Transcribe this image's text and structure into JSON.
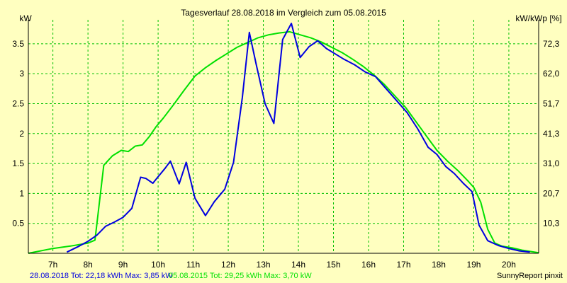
{
  "colors": {
    "background": "#ffffc0",
    "grid": "#00c000",
    "series_2018": "#0000e0",
    "series_2015": "#00e000",
    "axis": "#000000"
  },
  "footer": {
    "series1_label": "28.08.2018 Tot: 22,18 kWh Max: 3,85 kW",
    "series2_label": "05.08.2015 Tot: 29,25 kWh Max: 3,70 kW",
    "credit": "SunnyReport pinxit"
  },
  "chart_data": {
    "type": "line",
    "title": "Tagesverlauf 28.08.2018 im Vergleich zum 05.08.2015",
    "ylabel": "kW",
    "y2label": "kW/kWp [%]",
    "xlim": [
      6.3,
      20.85
    ],
    "ylim": [
      0,
      3.9
    ],
    "x_ticks": [
      "7h",
      "8h",
      "9h",
      "10h",
      "11h",
      "12h",
      "13h",
      "14h",
      "15h",
      "16h",
      "17h",
      "18h",
      "19h",
      "20h"
    ],
    "y_ticks": [
      "0.5",
      "1",
      "1.5",
      "2",
      "2.5",
      "3",
      "3.5"
    ],
    "y2_ticks": [
      "10,3",
      "20,7",
      "31,0",
      "41,3",
      "51,7",
      "62,0",
      "72,3"
    ],
    "grid": true,
    "series": [
      {
        "name": "28.08.2018",
        "color": "#0000e0",
        "x": [
          7.4,
          7.75,
          8.0,
          8.25,
          8.5,
          8.75,
          9.0,
          9.25,
          9.5,
          9.65,
          9.85,
          10.0,
          10.2,
          10.35,
          10.6,
          10.8,
          11.05,
          11.35,
          11.6,
          11.9,
          12.15,
          12.4,
          12.6,
          12.8,
          13.05,
          13.3,
          13.55,
          13.8,
          14.05,
          14.3,
          14.55,
          14.8,
          15.05,
          15.3,
          15.6,
          15.9,
          16.2,
          16.5,
          16.8,
          17.1,
          17.4,
          17.7,
          17.95,
          18.2,
          18.45,
          18.7,
          18.95,
          19.15,
          19.4,
          19.7,
          20.0,
          20.3,
          20.6
        ],
        "y": [
          0.02,
          0.12,
          0.2,
          0.3,
          0.45,
          0.52,
          0.6,
          0.75,
          1.27,
          1.25,
          1.17,
          1.28,
          1.42,
          1.54,
          1.16,
          1.52,
          0.92,
          0.63,
          0.86,
          1.07,
          1.52,
          2.6,
          3.69,
          3.15,
          2.5,
          2.17,
          3.57,
          3.84,
          3.27,
          3.45,
          3.55,
          3.42,
          3.33,
          3.24,
          3.15,
          3.03,
          2.95,
          2.75,
          2.55,
          2.35,
          2.08,
          1.77,
          1.65,
          1.45,
          1.33,
          1.17,
          1.03,
          0.47,
          0.21,
          0.13,
          0.08,
          0.04,
          0.02
        ]
      },
      {
        "name": "05.08.2015",
        "color": "#00e000",
        "x": [
          6.3,
          7.0,
          7.5,
          8.0,
          8.2,
          8.45,
          8.7,
          8.95,
          9.15,
          9.35,
          9.55,
          9.75,
          9.95,
          10.15,
          10.45,
          10.75,
          11.05,
          11.35,
          11.65,
          11.95,
          12.25,
          12.55,
          12.85,
          13.15,
          13.45,
          13.75,
          14.05,
          14.35,
          14.65,
          14.95,
          15.25,
          15.55,
          15.85,
          16.15,
          16.45,
          16.75,
          17.05,
          17.35,
          17.65,
          17.95,
          18.25,
          18.55,
          18.85,
          19.0,
          19.2,
          19.4,
          19.6,
          19.8,
          20.1,
          20.4,
          20.85
        ],
        "y": [
          0.0,
          0.08,
          0.12,
          0.17,
          0.22,
          1.47,
          1.63,
          1.72,
          1.7,
          1.79,
          1.81,
          1.95,
          2.12,
          2.26,
          2.49,
          2.73,
          2.96,
          3.1,
          3.22,
          3.33,
          3.44,
          3.52,
          3.6,
          3.65,
          3.68,
          3.7,
          3.65,
          3.6,
          3.53,
          3.44,
          3.35,
          3.24,
          3.12,
          2.98,
          2.82,
          2.63,
          2.44,
          2.2,
          1.96,
          1.72,
          1.54,
          1.38,
          1.2,
          1.1,
          0.85,
          0.4,
          0.17,
          0.12,
          0.09,
          0.05,
          0.01
        ]
      }
    ]
  }
}
